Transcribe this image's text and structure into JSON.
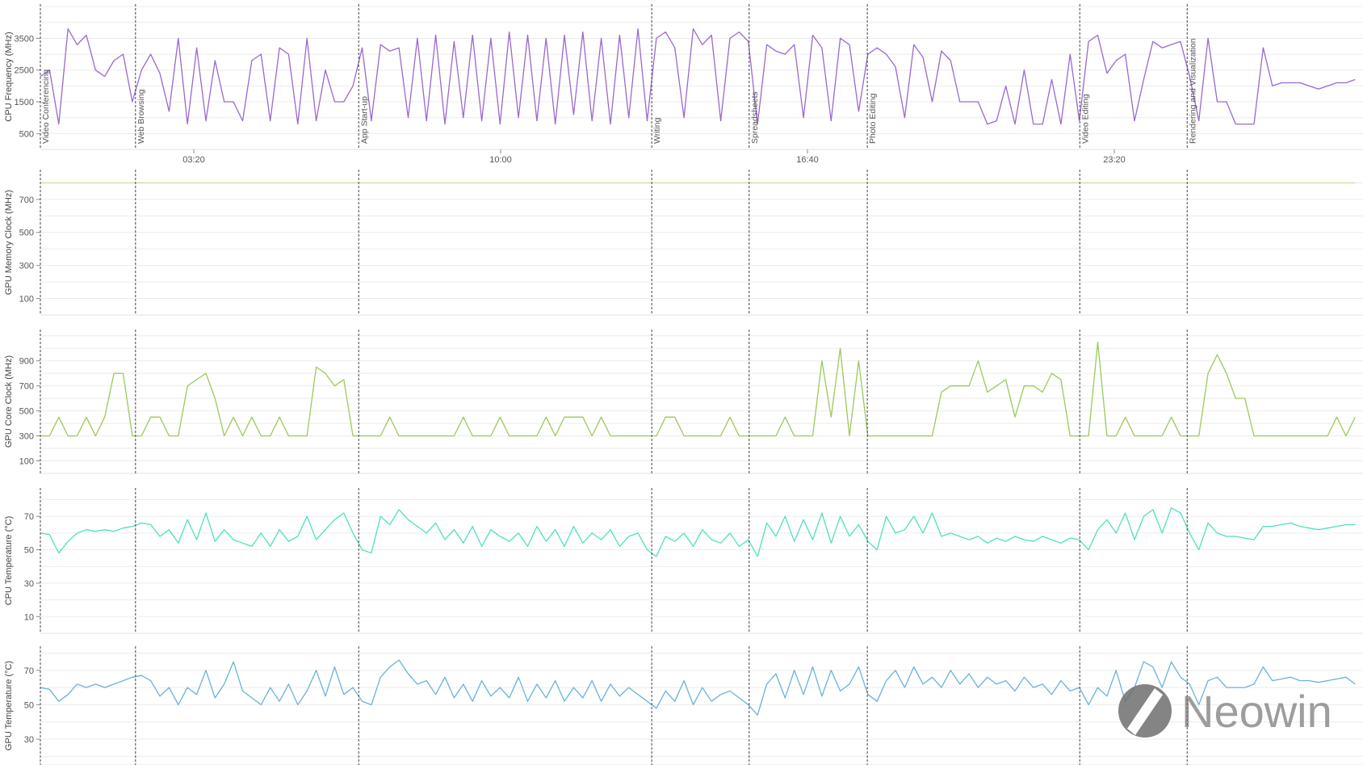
{
  "chart_data": [
    {
      "type": "line",
      "ylabel": "CPU Frequency (MHz)",
      "ylim": [
        0,
        4580
      ],
      "yticks": [
        500,
        1500,
        2500,
        3500
      ],
      "grid_step": 500,
      "color": "#9a68cf",
      "values": [
        2300,
        2500,
        800,
        3800,
        3300,
        3600,
        2500,
        2300,
        2800,
        3000,
        1500,
        2500,
        3000,
        2400,
        1200,
        3500,
        800,
        3200,
        900,
        2800,
        1500,
        1500,
        900,
        2800,
        3000,
        900,
        3200,
        3000,
        800,
        3500,
        900,
        2500,
        1500,
        1500,
        2000,
        3200,
        900,
        3300,
        3100,
        3200,
        1000,
        3500,
        900,
        3600,
        800,
        3400,
        1000,
        3600,
        900,
        3500,
        800,
        3700,
        1000,
        3600,
        900,
        3500,
        800,
        3600,
        1100,
        3700,
        900,
        3500,
        800,
        3600,
        1000,
        3800,
        900,
        3500,
        3700,
        3200,
        1000,
        3800,
        3300,
        3600,
        900,
        3500,
        3700,
        3400,
        800,
        3300,
        3100,
        3000,
        3300,
        1000,
        3600,
        3200,
        900,
        3500,
        3300,
        1200,
        3000,
        3200,
        3000,
        2600,
        1000,
        3300,
        2900,
        1500,
        3100,
        2800,
        1500,
        1500,
        1500,
        800,
        900,
        2000,
        800,
        2500,
        800,
        800,
        2200,
        800,
        3000,
        900,
        3400,
        3600,
        2400,
        2800,
        3000,
        900,
        2200,
        3400,
        3200,
        3300,
        3400,
        2300,
        900,
        3500,
        1500,
        1500,
        800,
        800,
        800,
        3200,
        2000,
        2100,
        2100,
        2100,
        2000,
        1900,
        2000,
        2100,
        2100,
        2200
      ]
    },
    {
      "type": "line",
      "ylabel": "GPU Memory Clock (MHz)",
      "ylim": [
        0,
        880
      ],
      "yticks": [
        100,
        300,
        500,
        700
      ],
      "grid_step": 100,
      "color": "#c9dc9c",
      "values": [
        800,
        800
      ]
    },
    {
      "type": "line",
      "ylabel": "GPU Core Clock (MHz)",
      "ylim": [
        0,
        1150
      ],
      "yticks": [
        100,
        300,
        500,
        700,
        900
      ],
      "grid_step": 100,
      "color": "#9cc95a",
      "values": [
        300,
        300,
        450,
        300,
        300,
        450,
        300,
        450,
        800,
        800,
        300,
        300,
        450,
        450,
        300,
        300,
        700,
        750,
        800,
        600,
        300,
        450,
        300,
        450,
        300,
        300,
        450,
        300,
        300,
        300,
        850,
        800,
        700,
        750,
        300,
        300,
        300,
        300,
        450,
        300,
        300,
        300,
        300,
        300,
        300,
        300,
        450,
        300,
        300,
        300,
        450,
        300,
        300,
        300,
        300,
        450,
        300,
        450,
        450,
        450,
        300,
        450,
        300,
        300,
        300,
        300,
        300,
        300,
        450,
        450,
        300,
        300,
        300,
        300,
        300,
        450,
        300,
        300,
        300,
        300,
        300,
        450,
        300,
        300,
        300,
        900,
        450,
        1000,
        300,
        900,
        300,
        300,
        300,
        300,
        300,
        300,
        300,
        300,
        650,
        700,
        700,
        700,
        900,
        650,
        700,
        750,
        450,
        700,
        700,
        650,
        800,
        750,
        300,
        300,
        300,
        1050,
        300,
        300,
        450,
        300,
        300,
        300,
        300,
        450,
        300,
        300,
        300,
        800,
        950,
        800,
        600,
        600,
        300,
        300,
        300,
        300,
        300,
        300,
        300,
        300,
        300,
        450,
        300,
        450
      ]
    },
    {
      "type": "line",
      "ylabel": "CPU Temperature (°C)",
      "ylim": [
        0,
        87
      ],
      "yticks": [
        10,
        30,
        50,
        70
      ],
      "grid_step": 10,
      "color": "#4fe0c0",
      "values": [
        60,
        59,
        48,
        55,
        60,
        62,
        61,
        62,
        61,
        63,
        64,
        66,
        65,
        58,
        62,
        54,
        68,
        56,
        72,
        55,
        62,
        56,
        54,
        52,
        60,
        52,
        62,
        55,
        58,
        70,
        56,
        62,
        68,
        72,
        60,
        50,
        48,
        70,
        65,
        74,
        68,
        64,
        60,
        66,
        56,
        62,
        54,
        64,
        52,
        62,
        58,
        55,
        60,
        52,
        64,
        55,
        62,
        52,
        64,
        54,
        60,
        56,
        62,
        52,
        58,
        60,
        50,
        46,
        58,
        55,
        60,
        52,
        62,
        56,
        54,
        60,
        52,
        56,
        46,
        66,
        58,
        70,
        55,
        68,
        56,
        72,
        54,
        70,
        58,
        65,
        55,
        50,
        70,
        60,
        62,
        70,
        60,
        72,
        58,
        60,
        58,
        56,
        58,
        54,
        57,
        55,
        58,
        56,
        55,
        58,
        56,
        54,
        57,
        56,
        50,
        62,
        68,
        60,
        72,
        56,
        70,
        74,
        60,
        75,
        72,
        60,
        50,
        66,
        60,
        58,
        58,
        57,
        56,
        64,
        64,
        65,
        66,
        64,
        63,
        62,
        63,
        64,
        65,
        65
      ]
    },
    {
      "type": "line",
      "ylabel": "GPU Temperature (°C)",
      "ylim": [
        15,
        84
      ],
      "yticks": [
        30,
        50,
        70
      ],
      "grid_step": 10,
      "color": "#6ab2d9",
      "values": [
        60,
        59,
        52,
        56,
        62,
        60,
        62,
        60,
        62,
        64,
        66,
        67,
        64,
        55,
        60,
        50,
        60,
        56,
        70,
        54,
        62,
        75,
        58,
        54,
        50,
        60,
        52,
        62,
        50,
        58,
        70,
        55,
        72,
        56,
        60,
        52,
        50,
        66,
        72,
        76,
        68,
        62,
        64,
        56,
        66,
        54,
        62,
        52,
        64,
        55,
        60,
        54,
        66,
        52,
        62,
        54,
        64,
        52,
        60,
        54,
        64,
        52,
        62,
        55,
        60,
        56,
        52,
        48,
        58,
        52,
        64,
        50,
        60,
        52,
        56,
        58,
        54,
        50,
        44,
        62,
        68,
        54,
        70,
        56,
        72,
        55,
        70,
        58,
        62,
        72,
        56,
        52,
        64,
        70,
        60,
        72,
        62,
        66,
        60,
        70,
        62,
        68,
        60,
        66,
        62,
        64,
        58,
        66,
        60,
        62,
        56,
        64,
        58,
        60,
        50,
        60,
        55,
        70,
        52,
        60,
        75,
        72,
        60,
        75,
        66,
        62,
        50,
        64,
        66,
        60,
        60,
        60,
        62,
        72,
        64,
        65,
        66,
        64,
        64,
        63,
        64,
        65,
        66,
        62
      ]
    }
  ],
  "x_axis": {
    "start": "00:00",
    "end": "28:34",
    "ticks": [
      "03:20",
      "10:00",
      "16:40",
      "23:20"
    ]
  },
  "workloads": [
    {
      "label": "Video Conferencing",
      "time": "00:00"
    },
    {
      "label": "Web Browsing",
      "time": "02:04"
    },
    {
      "label": "App Start-up",
      "time": "06:55"
    },
    {
      "label": "Writing",
      "time": "13:17"
    },
    {
      "label": "Spreadsheets",
      "time": "15:24"
    },
    {
      "label": "Photo Editing",
      "time": "17:58"
    },
    {
      "label": "Video Editing",
      "time": "22:35"
    },
    {
      "label": "Rendering and Visualization",
      "time": "24:55"
    }
  ],
  "watermark": "Neowin"
}
